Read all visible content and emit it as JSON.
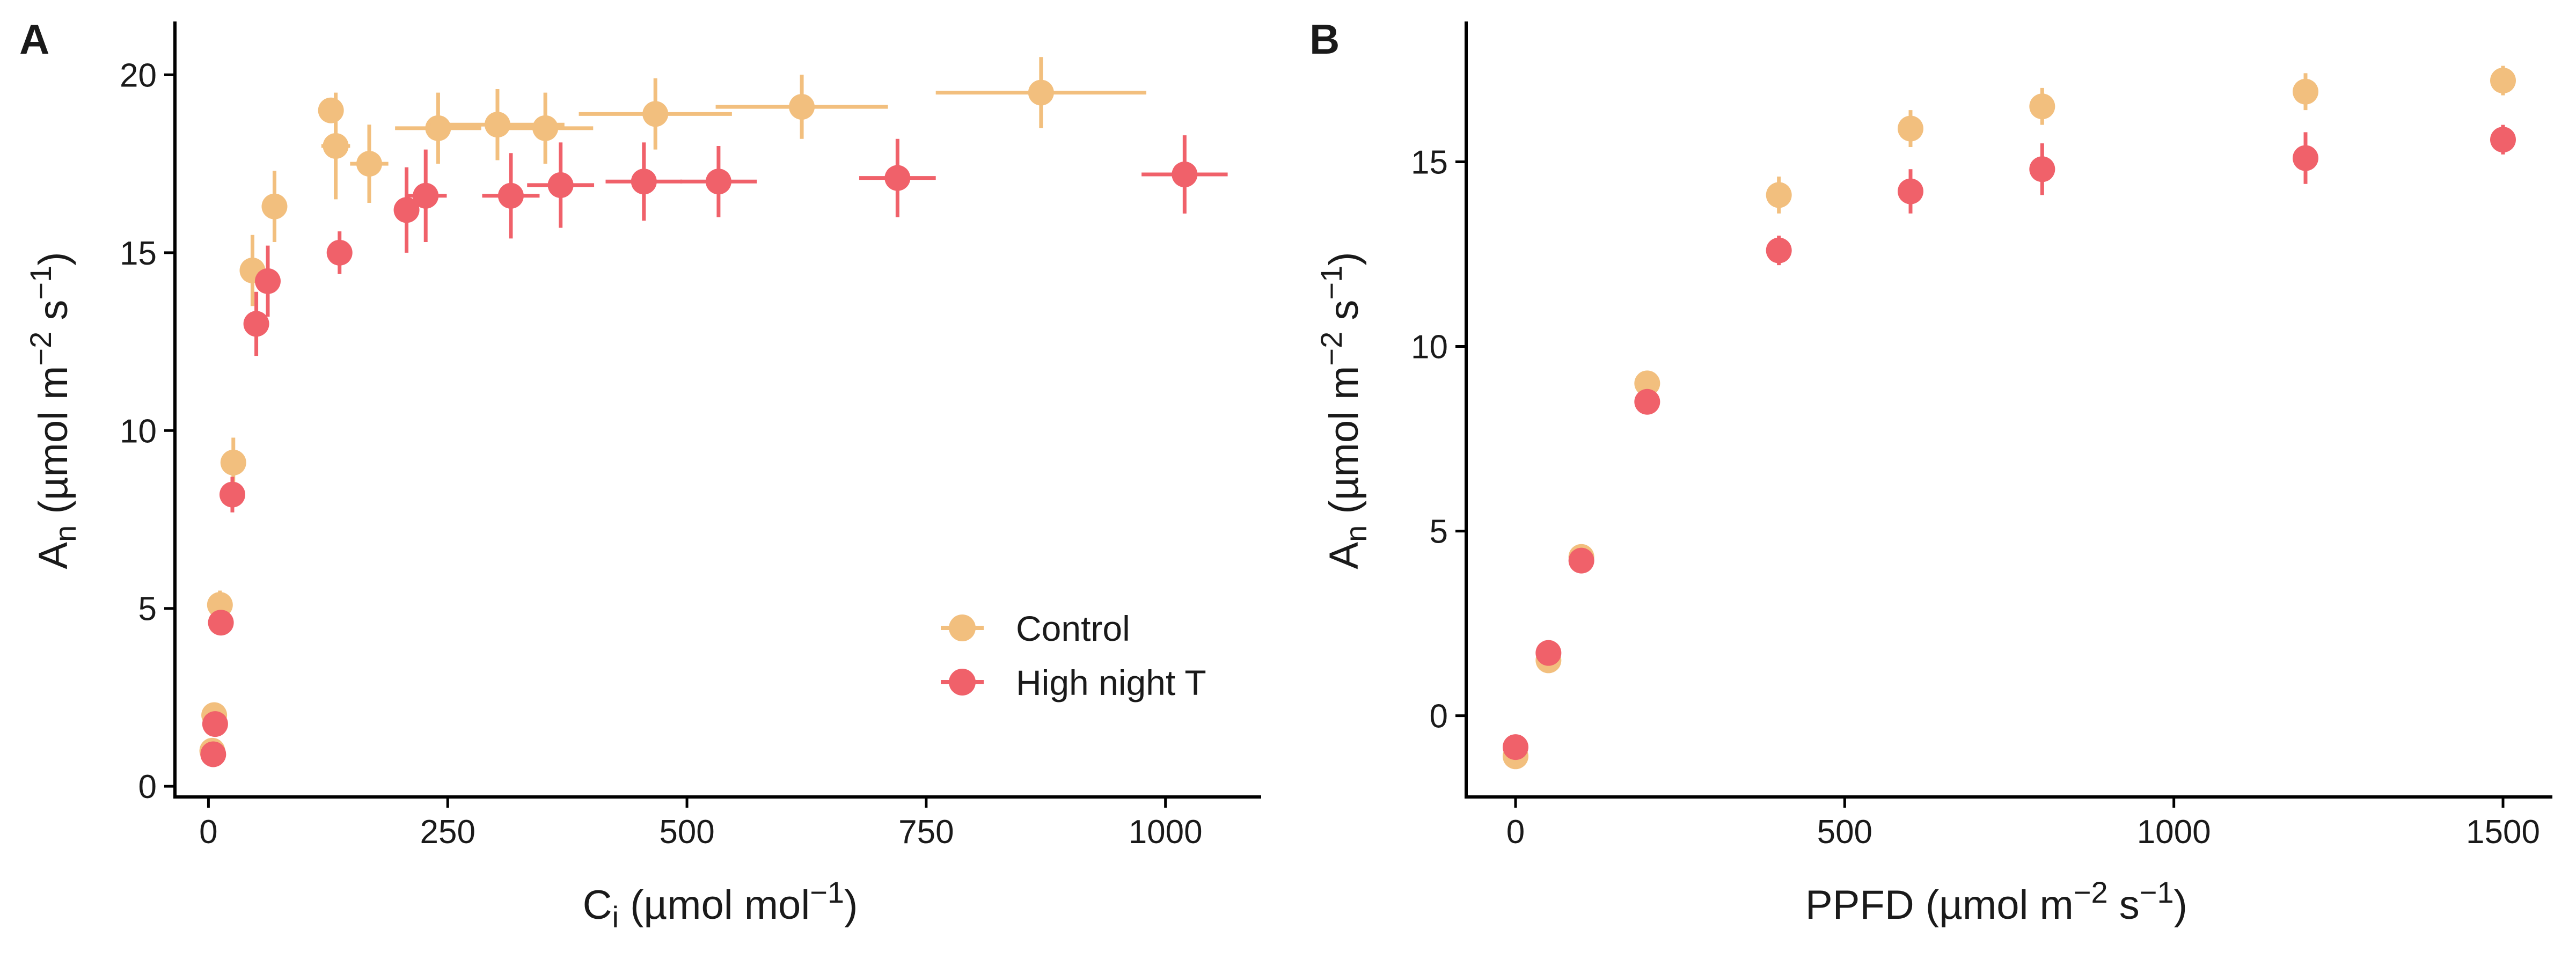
{
  "colors": {
    "control": "#F2BF7E",
    "high_night_t": "#F0616A",
    "axis": "#000000",
    "text": "#1a1a1a"
  },
  "legend": {
    "position": "bottom-right",
    "entries": [
      "Control",
      "High night T"
    ]
  },
  "chart_data": [
    {
      "panel": "A",
      "type": "scatter",
      "xlabel": {
        "main": "C",
        "sub": "i",
        "rest": " (µmol mol",
        "sup": "−1",
        "end": ")"
      },
      "ylabel": {
        "main": "A",
        "sub": "n",
        "rest": " (µmol m",
        "sup1": "−2",
        "mid": " s",
        "sup2": "−1",
        "end": ")"
      },
      "xlim": [
        -35,
        1100
      ],
      "ylim": [
        -0.3,
        21.5
      ],
      "xticks": [
        0,
        250,
        500,
        750,
        1000
      ],
      "xtick_labels": [
        "0",
        "250",
        "500",
        "750",
        "1000"
      ],
      "yticks": [
        0,
        5,
        10,
        15,
        20
      ],
      "ytick_labels": [
        "0",
        "5",
        "10",
        "15",
        "20"
      ],
      "grid": false,
      "legend_position": "bottom-right",
      "series": [
        {
          "name": "Control",
          "points": [
            {
              "x": 4,
              "y": 1.0,
              "xerr": 0,
              "yerr": 0
            },
            {
              "x": 6,
              "y": 2.0,
              "xerr": 0,
              "yerr": 0
            },
            {
              "x": 12,
              "y": 5.1,
              "xerr": 0,
              "yerr": 0.4
            },
            {
              "x": 26,
              "y": 9.1,
              "xerr": 0,
              "yerr": 0.7
            },
            {
              "x": 46,
              "y": 14.5,
              "xerr": 0,
              "yerr": 1.0
            },
            {
              "x": 69,
              "y": 16.3,
              "xerr": 0,
              "yerr": 1.0
            },
            {
              "x": 128,
              "y": 19.0,
              "xerr": 0,
              "yerr": 0
            },
            {
              "x": 133,
              "y": 18.0,
              "xerr": 15,
              "yerr": 1.5
            },
            {
              "x": 168,
              "y": 17.5,
              "xerr": 20,
              "yerr": 1.1
            },
            {
              "x": 240,
              "y": 18.5,
              "xerr": 45,
              "yerr": 1.0
            },
            {
              "x": 302,
              "y": 18.6,
              "xerr": 70,
              "yerr": 1.0
            },
            {
              "x": 352,
              "y": 18.5,
              "xerr": 50,
              "yerr": 1.0
            },
            {
              "x": 467,
              "y": 18.9,
              "xerr": 80,
              "yerr": 1.0
            },
            {
              "x": 620,
              "y": 19.1,
              "xerr": 90,
              "yerr": 0.9
            },
            {
              "x": 870,
              "y": 19.5,
              "xerr": 110,
              "yerr": 1.0
            }
          ]
        },
        {
          "name": "High night T",
          "points": [
            {
              "x": 5,
              "y": 0.9,
              "xerr": 0,
              "yerr": 0
            },
            {
              "x": 7,
              "y": 1.75,
              "xerr": 0,
              "yerr": 0
            },
            {
              "x": 13,
              "y": 4.6,
              "xerr": 0,
              "yerr": 0
            },
            {
              "x": 25,
              "y": 8.2,
              "xerr": 0,
              "yerr": 0.5
            },
            {
              "x": 50,
              "y": 13.0,
              "xerr": 0,
              "yerr": 0.9
            },
            {
              "x": 62,
              "y": 14.2,
              "xerr": 0,
              "yerr": 1.0
            },
            {
              "x": 137,
              "y": 15.0,
              "xerr": 0,
              "yerr": 0.6
            },
            {
              "x": 207,
              "y": 16.2,
              "xerr": 0,
              "yerr": 1.2
            },
            {
              "x": 227,
              "y": 16.6,
              "xerr": 22,
              "yerr": 1.3
            },
            {
              "x": 316,
              "y": 16.6,
              "xerr": 30,
              "yerr": 1.2
            },
            {
              "x": 368,
              "y": 16.9,
              "xerr": 35,
              "yerr": 1.2
            },
            {
              "x": 455,
              "y": 17.0,
              "xerr": 40,
              "yerr": 1.1
            },
            {
              "x": 533,
              "y": 17.0,
              "xerr": 40,
              "yerr": 1.0
            },
            {
              "x": 720,
              "y": 17.1,
              "xerr": 40,
              "yerr": 1.1
            },
            {
              "x": 1020,
              "y": 17.2,
              "xerr": 45,
              "yerr": 1.1
            }
          ]
        }
      ]
    },
    {
      "panel": "B",
      "type": "scatter",
      "xlabel": {
        "main": "PPFD (µmol m",
        "sup1": "−2",
        "mid": " s",
        "sup2": "−1",
        "end": ")"
      },
      "ylabel": {
        "main": "A",
        "sub": "n",
        "rest": " (µmol m",
        "sup1": "−2",
        "mid": " s",
        "sup2": "−1",
        "end": ")"
      },
      "xlim": [
        -75,
        1575
      ],
      "ylim": [
        -2.2,
        18.8
      ],
      "xticks": [
        0,
        500,
        1000,
        1500
      ],
      "xtick_labels": [
        "0",
        "500",
        "1000",
        "1500"
      ],
      "yticks": [
        0,
        5,
        10,
        15
      ],
      "ytick_labels": [
        "0",
        "5",
        "10",
        "15"
      ],
      "grid": false,
      "series": [
        {
          "name": "Control",
          "points": [
            {
              "x": 0,
              "y": -1.1,
              "xerr": 0,
              "yerr": 0
            },
            {
              "x": 50,
              "y": 1.5,
              "xerr": 0,
              "yerr": 0
            },
            {
              "x": 100,
              "y": 4.3,
              "xerr": 0,
              "yerr": 0
            },
            {
              "x": 200,
              "y": 9.0,
              "xerr": 0,
              "yerr": 0
            },
            {
              "x": 400,
              "y": 14.1,
              "xerr": 0,
              "yerr": 0.5
            },
            {
              "x": 600,
              "y": 15.9,
              "xerr": 0,
              "yerr": 0.5
            },
            {
              "x": 800,
              "y": 16.5,
              "xerr": 0,
              "yerr": 0.5
            },
            {
              "x": 1200,
              "y": 16.9,
              "xerr": 0,
              "yerr": 0.5
            },
            {
              "x": 1500,
              "y": 17.2,
              "xerr": 0,
              "yerr": 0.4
            }
          ]
        },
        {
          "name": "High night T",
          "points": [
            {
              "x": 0,
              "y": -0.85,
              "xerr": 0,
              "yerr": 0
            },
            {
              "x": 50,
              "y": 1.7,
              "xerr": 0,
              "yerr": 0
            },
            {
              "x": 100,
              "y": 4.2,
              "xerr": 0,
              "yerr": 0
            },
            {
              "x": 200,
              "y": 8.5,
              "xerr": 0,
              "yerr": 0
            },
            {
              "x": 400,
              "y": 12.6,
              "xerr": 0,
              "yerr": 0.4
            },
            {
              "x": 600,
              "y": 14.2,
              "xerr": 0,
              "yerr": 0.6
            },
            {
              "x": 800,
              "y": 14.8,
              "xerr": 0,
              "yerr": 0.7
            },
            {
              "x": 1200,
              "y": 15.1,
              "xerr": 0,
              "yerr": 0.7
            },
            {
              "x": 1500,
              "y": 15.6,
              "xerr": 0,
              "yerr": 0.4
            }
          ]
        }
      ]
    }
  ]
}
